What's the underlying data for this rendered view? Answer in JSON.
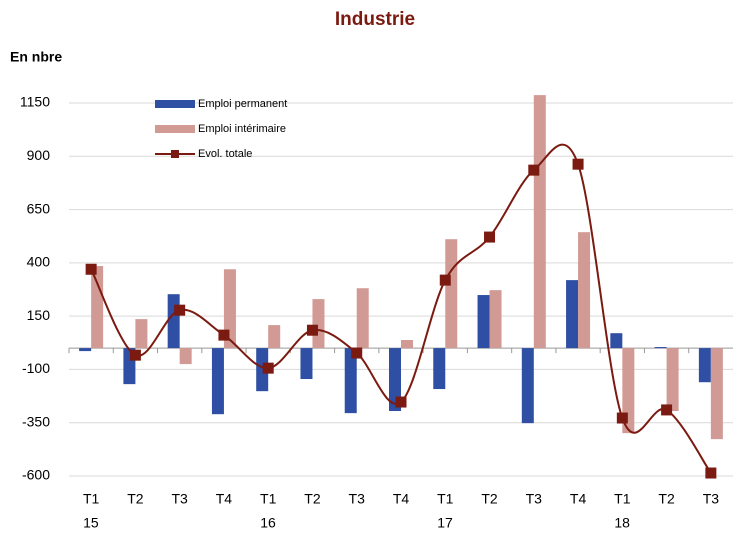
{
  "chart_data": {
    "type": "bar_line",
    "title": "Industrie",
    "y_label": "En nbre",
    "categories": [
      "T1",
      "T2",
      "T3",
      "T4",
      "T1",
      "T2",
      "T3",
      "T4",
      "T1",
      "T2",
      "T3",
      "T4",
      "T1",
      "T2",
      "T3"
    ],
    "years": [
      "15",
      null,
      null,
      null,
      "16",
      null,
      null,
      null,
      "17",
      null,
      null,
      null,
      "18",
      null,
      null
    ],
    "series": [
      {
        "name": "Emploi permanent",
        "type": "bar",
        "color": "#2e4fa3",
        "values": [
          -14,
          -169,
          253,
          -310,
          -202,
          -145,
          -305,
          -295,
          -192,
          249,
          -352,
          319,
          70,
          5,
          -160
        ]
      },
      {
        "name": "Emploi intérimaire",
        "type": "bar",
        "color": "#d29a94",
        "values": [
          385,
          136,
          -75,
          370,
          108,
          230,
          281,
          38,
          511,
          272,
          1187,
          544,
          -399,
          -295,
          -427
        ]
      },
      {
        "name": "Evol. totale",
        "type": "line",
        "color": "#7b1a10",
        "values": [
          370,
          -33,
          178,
          61,
          -94,
          84,
          -23,
          -253,
          319,
          521,
          835,
          863,
          -328,
          -290,
          -586
        ]
      }
    ],
    "ylim": [
      -600,
      1150
    ],
    "yticks": [
      -600,
      -350,
      -100,
      150,
      400,
      650,
      900,
      1150
    ],
    "grid": true
  }
}
